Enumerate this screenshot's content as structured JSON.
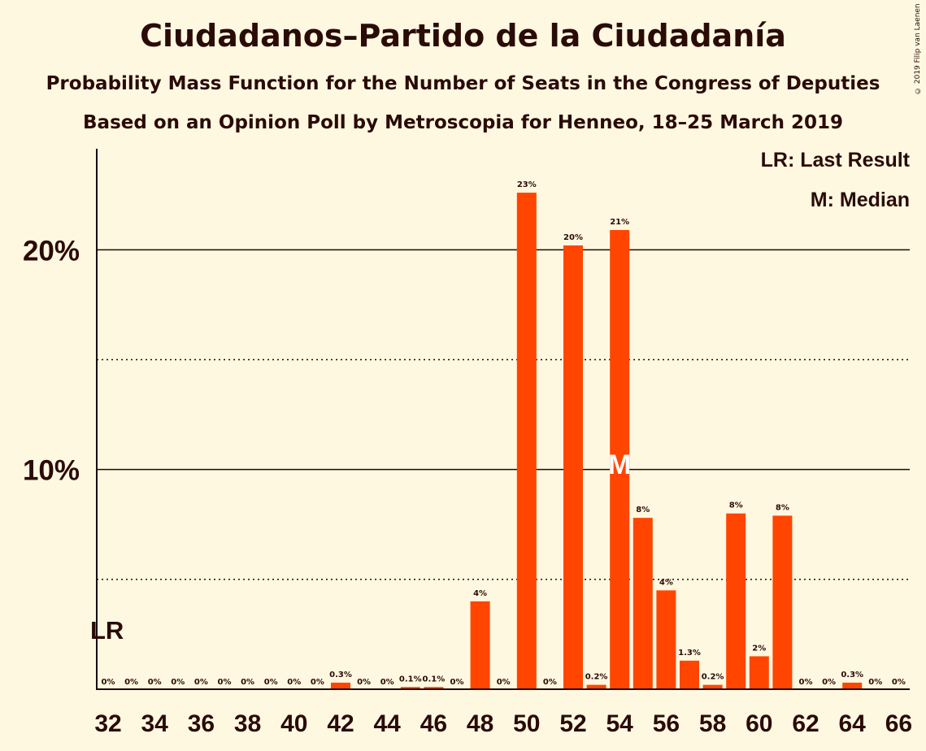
{
  "title": "Ciudadanos–Partido de la Ciudadanía",
  "subtitle": "Probability Mass Function for the Number of Seats in the Congress of Deputies",
  "subtitle2": "Based on an Opinion Poll by Metroscopia for Henneo, 18–25 March 2019",
  "copyright": "© 2019 Filip van Laenen",
  "legend": {
    "last_result": "LR: Last Result",
    "median": "M: Median"
  },
  "markers": {
    "last_result_label": "LR",
    "median_label": "M"
  },
  "colors": {
    "bar": "#FF4500",
    "background": "#FFF8E1",
    "text": "#2a0b07",
    "median_marker": "#FFFFFF"
  },
  "chart_data": {
    "type": "bar",
    "x": [
      32,
      33,
      34,
      35,
      36,
      37,
      38,
      39,
      40,
      41,
      42,
      43,
      44,
      45,
      46,
      47,
      48,
      49,
      50,
      51,
      52,
      53,
      54,
      55,
      56,
      57,
      58,
      59,
      60,
      61,
      62,
      63,
      64,
      65,
      66
    ],
    "values": [
      0,
      0,
      0,
      0,
      0,
      0,
      0,
      0,
      0,
      0,
      0.3,
      0,
      0,
      0.1,
      0.1,
      0,
      4,
      0,
      22.6,
      0,
      20.2,
      0.2,
      20.9,
      7.8,
      4.5,
      1.3,
      0.2,
      8,
      1.5,
      7.9,
      0,
      0,
      0.3,
      0,
      0
    ],
    "value_labels": [
      "0%",
      "0%",
      "0%",
      "0%",
      "0%",
      "0%",
      "0%",
      "0%",
      "0%",
      "0%",
      "0.3%",
      "0%",
      "0%",
      "0.1%",
      "0.1%",
      "0%",
      "4%",
      "0%",
      "23%",
      "0%",
      "20%",
      "0.2%",
      "21%",
      "8%",
      "4%",
      "1.3%",
      "0.2%",
      "8%",
      "2%",
      "8%",
      "0%",
      "0%",
      "0.3%",
      "0%",
      "0%"
    ],
    "x_tick_labels": [
      "32",
      "34",
      "36",
      "38",
      "40",
      "42",
      "44",
      "46",
      "48",
      "50",
      "52",
      "54",
      "56",
      "58",
      "60",
      "62",
      "64",
      "66"
    ],
    "y_tick_labels": [
      "10%",
      "20%"
    ],
    "y_major_ticks": [
      10,
      20
    ],
    "y_minor_gridlines": [
      5,
      15
    ],
    "ylim": [
      0,
      24.6
    ],
    "last_result": 32,
    "median": 54,
    "xlabel": "",
    "ylabel": ""
  }
}
